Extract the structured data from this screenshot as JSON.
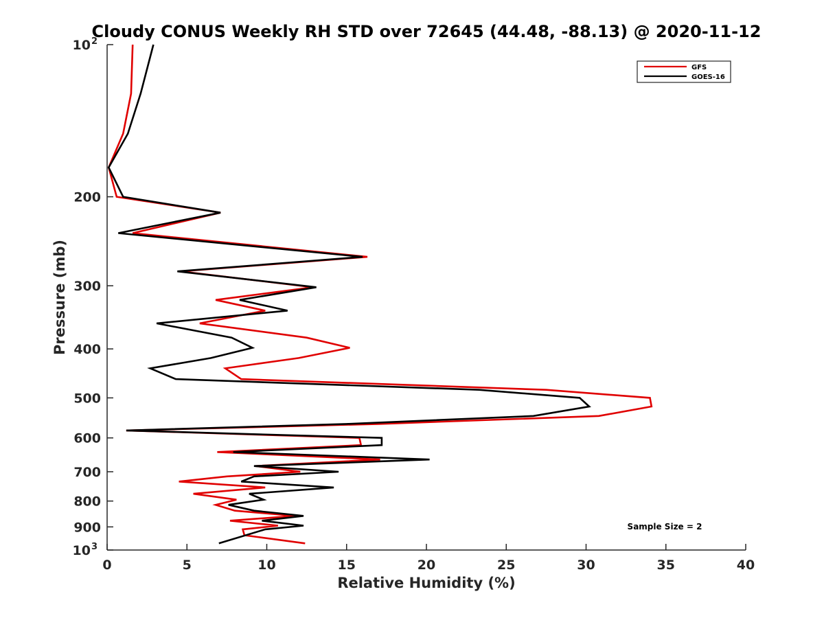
{
  "chart_data": {
    "type": "line",
    "title": "Cloudy CONUS Weekly RH STD over 72645 (44.48, -88.13) @ 2020-11-12",
    "xlabel": "Relative Humidity (%)",
    "ylabel": "Pressure (mb)",
    "xlim": [
      0,
      40
    ],
    "ylim": [
      100,
      1000
    ],
    "y_scale": "log",
    "y_reversed": true,
    "grid": false,
    "legend_position": "top-right",
    "x_ticks": [
      "0",
      "5",
      "10",
      "15",
      "20",
      "25",
      "30",
      "35",
      "40"
    ],
    "y_ticks": [
      {
        "value": 100,
        "label": "10",
        "sup": "2"
      },
      {
        "value": 200,
        "label": "200",
        "sup": ""
      },
      {
        "value": 300,
        "label": "300",
        "sup": ""
      },
      {
        "value": 400,
        "label": "400",
        "sup": ""
      },
      {
        "value": 500,
        "label": "500",
        "sup": ""
      },
      {
        "value": 600,
        "label": "600",
        "sup": ""
      },
      {
        "value": 700,
        "label": "700",
        "sup": ""
      },
      {
        "value": 800,
        "label": "800",
        "sup": ""
      },
      {
        "value": 900,
        "label": "900",
        "sup": ""
      },
      {
        "value": 1000,
        "label": "10",
        "sup": "3"
      }
    ],
    "annotation": "Sample Size = 2",
    "series": [
      {
        "name": "GFS",
        "color": "#e00000",
        "points": [
          [
            1.6,
            100
          ],
          [
            1.5,
            125
          ],
          [
            1.0,
            150
          ],
          [
            0.1,
            175
          ],
          [
            0.6,
            200
          ],
          [
            7.1,
            215
          ],
          [
            1.6,
            236
          ],
          [
            16.3,
            263
          ],
          [
            4.6,
            281
          ],
          [
            12.9,
            302
          ],
          [
            6.8,
            320
          ],
          [
            9.9,
            336
          ],
          [
            5.8,
            356
          ],
          [
            12.5,
            380
          ],
          [
            15.2,
            398
          ],
          [
            12.0,
            417
          ],
          [
            7.4,
            437
          ],
          [
            8.4,
            459
          ],
          [
            27.5,
            482
          ],
          [
            34.0,
            500
          ],
          [
            34.1,
            520
          ],
          [
            30.8,
            543
          ],
          [
            17.0,
            563
          ],
          [
            1.2,
            580
          ],
          [
            15.8,
            600
          ],
          [
            15.9,
            620
          ],
          [
            6.9,
            640
          ],
          [
            17.1,
            662
          ],
          [
            9.3,
            682
          ],
          [
            12.1,
            700
          ],
          [
            7.5,
            715
          ],
          [
            4.5,
            732
          ],
          [
            9.9,
            752
          ],
          [
            5.4,
            774
          ],
          [
            8.1,
            795
          ],
          [
            6.8,
            814
          ],
          [
            8.0,
            836
          ],
          [
            11.8,
            856
          ],
          [
            7.7,
            875
          ],
          [
            10.7,
            895
          ],
          [
            8.5,
            910
          ],
          [
            8.6,
            935
          ],
          [
            12.4,
            970
          ]
        ]
      },
      {
        "name": "GOES-16",
        "color": "#000000",
        "points": [
          [
            2.9,
            100
          ],
          [
            2.1,
            125
          ],
          [
            1.3,
            150
          ],
          [
            0.1,
            175
          ],
          [
            1.0,
            200
          ],
          [
            7.1,
            215
          ],
          [
            0.7,
            236
          ],
          [
            16.0,
            263
          ],
          [
            4.4,
            281
          ],
          [
            13.1,
            302
          ],
          [
            8.3,
            320
          ],
          [
            11.3,
            336
          ],
          [
            3.1,
            356
          ],
          [
            7.8,
            380
          ],
          [
            9.1,
            398
          ],
          [
            6.5,
            417
          ],
          [
            2.7,
            437
          ],
          [
            4.3,
            459
          ],
          [
            23.3,
            482
          ],
          [
            29.6,
            500
          ],
          [
            30.2,
            520
          ],
          [
            26.7,
            543
          ],
          [
            15.0,
            563
          ],
          [
            1.2,
            580
          ],
          [
            17.2,
            600
          ],
          [
            17.2,
            620
          ],
          [
            7.9,
            640
          ],
          [
            20.2,
            662
          ],
          [
            9.2,
            682
          ],
          [
            14.5,
            700
          ],
          [
            9.2,
            715
          ],
          [
            8.4,
            732
          ],
          [
            14.2,
            752
          ],
          [
            8.9,
            774
          ],
          [
            9.8,
            795
          ],
          [
            7.6,
            814
          ],
          [
            9.2,
            836
          ],
          [
            12.3,
            856
          ],
          [
            9.7,
            875
          ],
          [
            12.3,
            895
          ],
          [
            9.9,
            910
          ],
          [
            7.0,
            970
          ]
        ]
      }
    ]
  }
}
